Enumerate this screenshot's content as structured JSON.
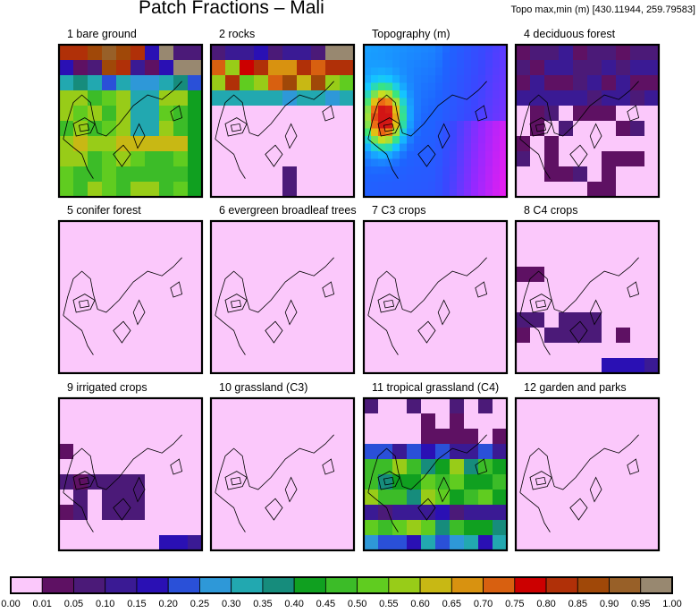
{
  "header": {
    "title": "Patch Fractions – Mali",
    "topo_note": "Topo max,min (m) [430.11944, 259.79583]"
  },
  "colors": {
    "panel_border": "#000000",
    "contour": "#000000",
    "zero_fill": "#fbc8fb"
  },
  "chart_data": {
    "type": "heatmap",
    "title": "Patch Fractions – Mali",
    "grid": false,
    "panels": [
      {
        "label": "1 bare ground",
        "mode": "bare"
      },
      {
        "label": "2 rocks",
        "mode": "rocks"
      },
      {
        "label": "Topography (m)",
        "mode": "topo"
      },
      {
        "label": "4 deciduous forest",
        "mode": "decid"
      },
      {
        "label": "5 conifer forest",
        "mode": "empty"
      },
      {
        "label": "6 evergreen broadleaf trees",
        "mode": "empty"
      },
      {
        "label": "7 C3 crops",
        "mode": "empty"
      },
      {
        "label": "8 C4 crops",
        "mode": "c4crops"
      },
      {
        "label": "9 irrigated crops",
        "mode": "irrig"
      },
      {
        "label": "10 grassland (C3)",
        "mode": "empty"
      },
      {
        "label": "11 tropical grassland (C4)",
        "mode": "tropgrass"
      },
      {
        "label": "12 garden and parks",
        "mode": "empty"
      }
    ],
    "colorbar": {
      "ticks": [
        "0.00",
        "0.01",
        "0.05",
        "0.10",
        "0.15",
        "0.20",
        "0.25",
        "0.30",
        "0.35",
        "0.40",
        "0.45",
        "0.50",
        "0.55",
        "0.60",
        "0.65",
        "0.70",
        "0.75",
        "0.80",
        "0.85",
        "0.90",
        "0.95",
        "1.00"
      ],
      "colors": [
        "#fbc8fb",
        "#5e1163",
        "#4b1a78",
        "#3a1a94",
        "#2a10b4",
        "#2a50d8",
        "#2e98d8",
        "#22a8b0",
        "#168c7c",
        "#10a020",
        "#3cbc28",
        "#60cc20",
        "#98cc18",
        "#c8b814",
        "#d89210",
        "#d86010",
        "#cc0000",
        "#b03008",
        "#a04808",
        "#986028",
        "#988870"
      ]
    }
  }
}
